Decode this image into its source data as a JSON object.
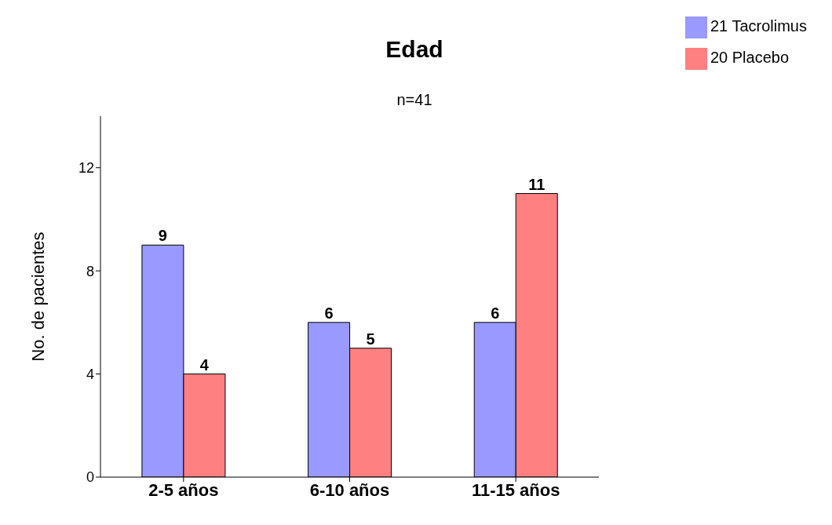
{
  "chart_data": {
    "type": "bar",
    "title": "Edad",
    "subtitle": "n=41",
    "ylabel": "No. de pacientes",
    "categories": [
      "2-5 años",
      "6-10 años",
      "11-15 años"
    ],
    "series": [
      {
        "name": "21 Tacrolimus",
        "color": "#9999ff",
        "values": [
          9,
          6,
          6
        ]
      },
      {
        "name": "20 Placebo",
        "color": "#ff8080",
        "values": [
          4,
          5,
          11
        ]
      }
    ],
    "ylim": [
      0,
      14
    ],
    "yticks": [
      0,
      4,
      8,
      12
    ],
    "grid": false,
    "legend": "top right",
    "data_labels": true
  }
}
